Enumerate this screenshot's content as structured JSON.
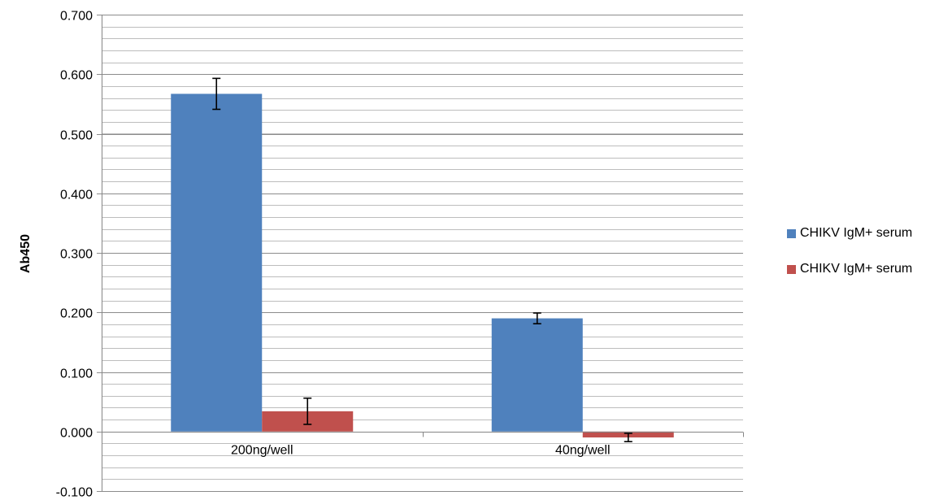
{
  "chart_data": {
    "type": "bar",
    "ylabel": "Ab450",
    "xlabel": "",
    "ylim": [
      -0.1,
      0.7
    ],
    "y_major_step": 0.1,
    "y_minor_step": 0.02,
    "y_tick_labels": [
      "0.700",
      "0.600",
      "0.500",
      "0.400",
      "0.300",
      "0.200",
      "0.100",
      "0.000",
      "-0.100"
    ],
    "grid": true,
    "legend_position": "right",
    "categories": [
      "200ng/well",
      "40ng/well"
    ],
    "series": [
      {
        "name": "CHIKV IgM+ serum",
        "color": "#4F81BD",
        "values": [
          0.567,
          0.19
        ],
        "errors": [
          0.026,
          0.009
        ]
      },
      {
        "name": "CHIKV IgM+ serum",
        "color": "#C0504D",
        "values": [
          0.034,
          -0.01
        ],
        "errors": [
          0.022,
          0.007
        ]
      }
    ]
  }
}
